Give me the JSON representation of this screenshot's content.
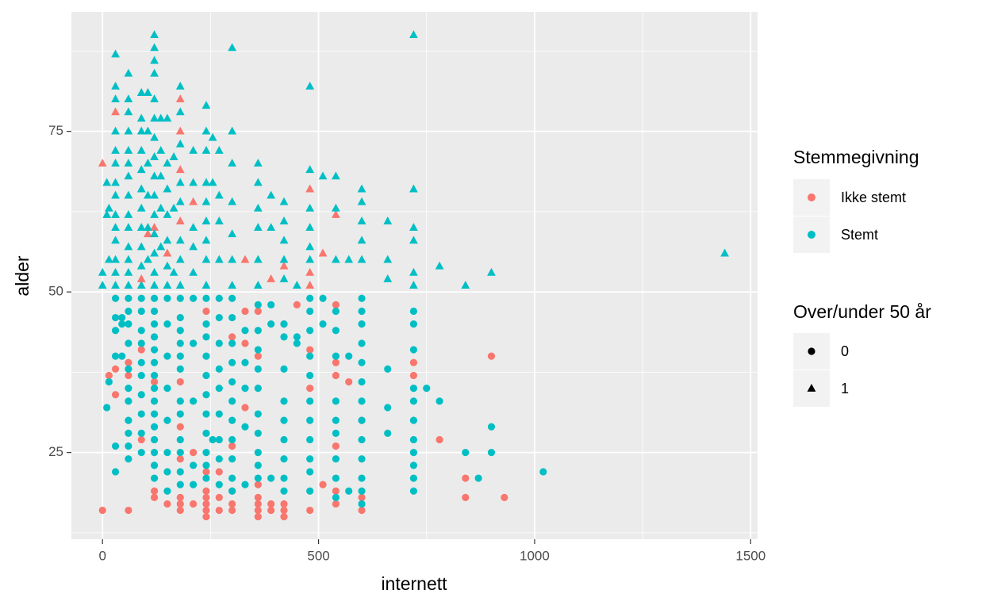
{
  "chart_data": {
    "type": "scatter",
    "x_label": "internett",
    "y_label": "alder",
    "xlim": [
      -72,
      1516
    ],
    "ylim": [
      11.5,
      93.6
    ],
    "xticks": [
      0,
      500,
      1000,
      1500
    ],
    "yticks": [
      25,
      50,
      75
    ],
    "grid": true,
    "legend_position": "right",
    "legend_title": "Stemmegivning",
    "shape_legend": {
      "title": "Over/under 50 år",
      "labels": [
        "0",
        "1"
      ],
      "shapes": [
        "circle",
        "triangle"
      ]
    },
    "series": [
      {
        "name": "Ikke stemt",
        "color": "#f8766d",
        "x": [
          0,
          0,
          15,
          30,
          30,
          30,
          60,
          60,
          60,
          90,
          90,
          90,
          105,
          120,
          120,
          120,
          120,
          150,
          150,
          180,
          180,
          180,
          180,
          180,
          180,
          180,
          180,
          180,
          180,
          210,
          210,
          210,
          240,
          240,
          240,
          240,
          240,
          240,
          240,
          270,
          270,
          270,
          300,
          300,
          300,
          300,
          300,
          330,
          330,
          330,
          330,
          360,
          360,
          360,
          360,
          360,
          360,
          360,
          390,
          390,
          390,
          420,
          420,
          420,
          420,
          420,
          450,
          480,
          480,
          480,
          480,
          480,
          480,
          510,
          510,
          540,
          540,
          540,
          540,
          540,
          540,
          540,
          570,
          600,
          600,
          600,
          720,
          720,
          780,
          840,
          840,
          900,
          930
        ],
        "values": [
          16,
          70,
          37,
          38,
          34,
          78,
          16,
          39,
          37,
          41,
          27,
          52,
          59,
          60,
          36,
          19,
          18,
          17,
          56,
          80,
          75,
          69,
          61,
          36,
          29,
          24,
          18,
          17,
          16,
          25,
          17,
          64,
          47,
          22,
          19,
          18,
          17,
          16,
          15,
          22,
          18,
          16,
          43,
          26,
          19,
          17,
          16,
          55,
          47,
          42,
          32,
          47,
          40,
          20,
          18,
          17,
          16,
          15,
          52,
          17,
          16,
          54,
          45,
          17,
          16,
          15,
          48,
          66,
          53,
          51,
          41,
          35,
          16,
          56,
          20,
          62,
          48,
          39,
          37,
          26,
          19,
          17,
          36,
          30,
          18,
          16,
          39,
          37,
          27,
          21,
          18,
          40,
          18
        ],
        "shapes": [
          0,
          1,
          0,
          0,
          0,
          1,
          0,
          0,
          0,
          0,
          0,
          1,
          1,
          1,
          0,
          0,
          0,
          0,
          1,
          1,
          1,
          1,
          1,
          0,
          0,
          0,
          0,
          0,
          0,
          0,
          0,
          1,
          0,
          0,
          0,
          0,
          0,
          0,
          0,
          0,
          0,
          0,
          0,
          0,
          0,
          0,
          0,
          1,
          0,
          0,
          0,
          0,
          0,
          0,
          0,
          0,
          0,
          0,
          1,
          0,
          0,
          1,
          0,
          0,
          0,
          0,
          0,
          1,
          1,
          1,
          0,
          0,
          0,
          1,
          0,
          1,
          0,
          0,
          0,
          0,
          0,
          0,
          0,
          0,
          0,
          0,
          0,
          0,
          0,
          0,
          0,
          0,
          0
        ]
      },
      {
        "name": "Stemt",
        "color": "#00bfc4",
        "x": [
          0,
          0,
          10,
          10,
          10,
          15,
          15,
          15,
          30,
          30,
          30,
          30,
          30,
          30,
          30,
          30,
          30,
          30,
          30,
          30,
          30,
          30,
          30,
          30,
          30,
          30,
          30,
          30,
          45,
          45,
          45,
          60,
          60,
          60,
          60,
          60,
          60,
          60,
          60,
          60,
          60,
          60,
          60,
          60,
          60,
          60,
          60,
          60,
          60,
          60,
          60,
          60,
          60,
          60,
          60,
          60,
          90,
          90,
          90,
          90,
          90,
          90,
          90,
          90,
          90,
          90,
          90,
          90,
          90,
          90,
          90,
          90,
          90,
          90,
          90,
          90,
          90,
          105,
          105,
          105,
          105,
          105,
          105,
          120,
          120,
          120,
          120,
          120,
          120,
          120,
          120,
          120,
          120,
          120,
          120,
          120,
          120,
          120,
          120,
          120,
          120,
          120,
          120,
          120,
          120,
          120,
          120,
          120,
          120,
          120,
          120,
          120,
          120,
          135,
          135,
          135,
          135,
          135,
          150,
          150,
          150,
          150,
          150,
          150,
          150,
          150,
          150,
          150,
          150,
          150,
          150,
          150,
          150,
          165,
          165,
          165,
          180,
          180,
          180,
          180,
          180,
          180,
          180,
          180,
          180,
          180,
          180,
          180,
          180,
          180,
          180,
          180,
          180,
          180,
          180,
          180,
          210,
          210,
          210,
          210,
          210,
          210,
          210,
          210,
          210,
          210,
          240,
          240,
          240,
          240,
          240,
          240,
          240,
          240,
          240,
          240,
          240,
          240,
          240,
          240,
          240,
          240,
          240,
          240,
          240,
          240,
          255,
          255,
          255,
          270,
          270,
          270,
          270,
          270,
          270,
          270,
          270,
          270,
          270,
          270,
          270,
          270,
          300,
          300,
          300,
          300,
          300,
          300,
          300,
          300,
          300,
          300,
          300,
          300,
          300,
          300,
          300,
          300,
          300,
          300,
          330,
          330,
          330,
          330,
          330,
          360,
          360,
          360,
          360,
          360,
          360,
          360,
          360,
          360,
          360,
          360,
          360,
          360,
          360,
          360,
          360,
          390,
          390,
          390,
          390,
          390,
          420,
          420,
          420,
          420,
          420,
          420,
          420,
          420,
          420,
          420,
          420,
          420,
          420,
          420,
          450,
          450,
          450,
          480,
          480,
          480,
          480,
          480,
          480,
          480,
          480,
          480,
          480,
          480,
          480,
          480,
          480,
          480,
          480,
          480,
          510,
          510,
          510,
          540,
          540,
          540,
          540,
          540,
          540,
          540,
          540,
          540,
          540,
          540,
          540,
          570,
          570,
          570,
          600,
          600,
          600,
          600,
          600,
          600,
          600,
          600,
          600,
          600,
          600,
          600,
          600,
          600,
          600,
          600,
          600,
          600,
          660,
          660,
          660,
          660,
          660,
          660,
          720,
          720,
          720,
          720,
          720,
          720,
          720,
          720,
          720,
          720,
          720,
          720,
          720,
          720,
          720,
          720,
          720,
          750,
          780,
          780,
          840,
          840,
          870,
          900,
          900,
          900,
          1020,
          1440
        ],
        "values": [
          53,
          51,
          62,
          67,
          32,
          63,
          55,
          36,
          87,
          82,
          80,
          75,
          72,
          70,
          67,
          65,
          62,
          60,
          58,
          55,
          53,
          51,
          49,
          46,
          44,
          40,
          26,
          22,
          46,
          45,
          40,
          84,
          80,
          78,
          75,
          72,
          70,
          68,
          65,
          62,
          60,
          57,
          55,
          53,
          51,
          49,
          47,
          45,
          42,
          38,
          35,
          33,
          30,
          28,
          26,
          24,
          81,
          77,
          75,
          72,
          69,
          66,
          63,
          60,
          57,
          54,
          51,
          49,
          47,
          44,
          42,
          39,
          37,
          34,
          31,
          28,
          25,
          81,
          75,
          70,
          65,
          60,
          55,
          90,
          88,
          86,
          84,
          80,
          77,
          74,
          71,
          68,
          65,
          62,
          59,
          56,
          53,
          51,
          49,
          47,
          45,
          43,
          41,
          39,
          37,
          35,
          33,
          31,
          29,
          27,
          25,
          23,
          21,
          77,
          72,
          68,
          63,
          57,
          77,
          70,
          66,
          62,
          58,
          54,
          51,
          49,
          45,
          40,
          35,
          30,
          25,
          22,
          19,
          71,
          63,
          53,
          82,
          78,
          73,
          67,
          64,
          58,
          55,
          51,
          49,
          46,
          44,
          42,
          40,
          38,
          33,
          31,
          27,
          25,
          22,
          20,
          72,
          67,
          60,
          57,
          53,
          49,
          42,
          33,
          23,
          20,
          79,
          75,
          72,
          67,
          64,
          61,
          58,
          55,
          51,
          49,
          45,
          43,
          40,
          37,
          34,
          31,
          28,
          25,
          23,
          21,
          74,
          67,
          27,
          72,
          65,
          61,
          55,
          49,
          46,
          42,
          38,
          35,
          31,
          27,
          24,
          20,
          88,
          75,
          70,
          64,
          59,
          55,
          51,
          49,
          46,
          42,
          39,
          36,
          33,
          30,
          27,
          24,
          21,
          19,
          44,
          39,
          35,
          29,
          20,
          70,
          67,
          63,
          60,
          55,
          51,
          48,
          44,
          41,
          38,
          35,
          31,
          28,
          25,
          23,
          21,
          65,
          60,
          48,
          45,
          21,
          64,
          61,
          58,
          55,
          52,
          45,
          43,
          38,
          33,
          30,
          27,
          24,
          21,
          19,
          51,
          43,
          42,
          82,
          69,
          63,
          60,
          57,
          55,
          49,
          47,
          44,
          40,
          37,
          33,
          30,
          27,
          24,
          22,
          19,
          68,
          49,
          45,
          68,
          63,
          55,
          47,
          44,
          40,
          33,
          30,
          28,
          24,
          21,
          18,
          55,
          40,
          19,
          66,
          64,
          61,
          58,
          55,
          49,
          47,
          45,
          42,
          39,
          36,
          33,
          30,
          27,
          24,
          21,
          19,
          17,
          61,
          55,
          52,
          38,
          32,
          28,
          90,
          66,
          60,
          58,
          53,
          51,
          47,
          45,
          41,
          35,
          33,
          30,
          27,
          25,
          23,
          21,
          19,
          35,
          54,
          33,
          51,
          25,
          21,
          53,
          29,
          25,
          22,
          56
        ],
        "shapes": [
          1,
          1,
          1,
          1,
          0,
          1,
          1,
          0,
          1,
          1,
          1,
          1,
          1,
          1,
          1,
          1,
          1,
          1,
          1,
          1,
          1,
          1,
          0,
          0,
          0,
          0,
          0,
          0,
          0,
          0,
          0,
          1,
          1,
          1,
          1,
          1,
          1,
          1,
          1,
          1,
          1,
          1,
          1,
          1,
          1,
          0,
          0,
          0,
          0,
          0,
          0,
          0,
          0,
          0,
          0,
          0,
          1,
          1,
          1,
          1,
          1,
          1,
          1,
          1,
          1,
          1,
          1,
          0,
          0,
          0,
          0,
          0,
          0,
          0,
          0,
          0,
          0,
          1,
          1,
          1,
          1,
          1,
          1,
          1,
          1,
          1,
          1,
          1,
          1,
          1,
          1,
          1,
          1,
          1,
          1,
          1,
          1,
          1,
          0,
          0,
          0,
          0,
          0,
          0,
          0,
          0,
          0,
          0,
          0,
          0,
          0,
          0,
          0,
          1,
          1,
          1,
          1,
          1,
          1,
          1,
          1,
          1,
          1,
          1,
          1,
          0,
          0,
          0,
          0,
          0,
          0,
          0,
          0,
          1,
          1,
          1,
          1,
          1,
          1,
          1,
          1,
          1,
          1,
          1,
          0,
          0,
          0,
          0,
          0,
          0,
          0,
          0,
          0,
          0,
          0,
          0,
          1,
          1,
          1,
          1,
          1,
          0,
          0,
          0,
          0,
          0,
          1,
          1,
          1,
          1,
          1,
          1,
          1,
          1,
          1,
          0,
          0,
          0,
          0,
          0,
          0,
          0,
          0,
          0,
          0,
          0,
          1,
          1,
          0,
          1,
          1,
          1,
          1,
          0,
          0,
          0,
          0,
          0,
          0,
          0,
          0,
          0,
          1,
          1,
          1,
          1,
          1,
          1,
          1,
          0,
          0,
          0,
          0,
          0,
          0,
          0,
          0,
          0,
          0,
          0,
          0,
          0,
          0,
          0,
          0,
          1,
          1,
          1,
          1,
          1,
          1,
          0,
          0,
          0,
          0,
          0,
          0,
          0,
          0,
          0,
          0,
          1,
          1,
          0,
          0,
          0,
          1,
          1,
          1,
          1,
          1,
          0,
          0,
          0,
          0,
          0,
          0,
          0,
          0,
          0,
          1,
          0,
          0,
          1,
          1,
          1,
          1,
          1,
          1,
          0,
          0,
          0,
          0,
          0,
          0,
          0,
          0,
          0,
          0,
          0,
          1,
          0,
          0,
          1,
          1,
          1,
          0,
          0,
          0,
          0,
          0,
          0,
          0,
          0,
          0,
          1,
          0,
          0,
          1,
          1,
          1,
          1,
          1,
          0,
          0,
          0,
          0,
          0,
          0,
          0,
          0,
          0,
          0,
          0,
          0,
          0,
          1,
          1,
          1,
          0,
          0,
          0,
          1,
          1,
          1,
          1,
          1,
          1,
          0,
          0,
          0,
          0,
          0,
          0,
          0,
          0,
          0,
          0,
          0,
          0,
          1,
          0,
          1,
          0,
          0,
          1,
          0,
          0,
          0,
          1
        ]
      }
    ]
  }
}
